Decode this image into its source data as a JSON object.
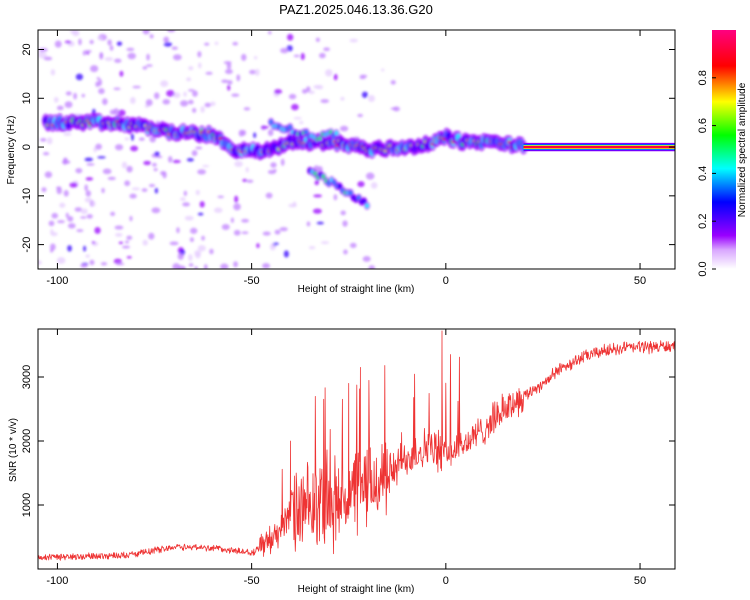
{
  "title": "PAZ1.2025.046.13.36.G20",
  "chart_data": [
    {
      "type": "heatmap",
      "xlabel": "Height of straight line (km)",
      "ylabel": "Frequency (Hz)",
      "xlim": [
        -105,
        59
      ],
      "ylim": [
        -25,
        24
      ],
      "x_ticks": [
        -100,
        -50,
        0,
        50
      ],
      "y_ticks": [
        -20,
        -10,
        0,
        10,
        20
      ],
      "colorbar": {
        "label": "Normalized spectral amplitude",
        "range": [
          0,
          1
        ],
        "ticks": [
          0.0,
          0.2,
          0.4,
          0.6,
          0.8
        ],
        "colors": [
          "#ffffff",
          "#9900ff",
          "#0000ff",
          "#00ffff",
          "#00ff00",
          "#ffff00",
          "#ff0000",
          "#ff0080"
        ]
      },
      "ridge_track": [
        {
          "x": -100,
          "y": 5
        },
        {
          "x": -90,
          "y": 5
        },
        {
          "x": -80,
          "y": 4.5
        },
        {
          "x": -70,
          "y": 3
        },
        {
          "x": -60,
          "y": 2.5
        },
        {
          "x": -55,
          "y": -0.5
        },
        {
          "x": -47,
          "y": -1
        },
        {
          "x": -40,
          "y": 1
        },
        {
          "x": -30,
          "y": 1
        },
        {
          "x": -25,
          "y": 0.5
        },
        {
          "x": -20,
          "y": -0.5
        },
        {
          "x": -10,
          "y": 0
        },
        {
          "x": -5,
          "y": 0.5
        },
        {
          "x": 0,
          "y": 2
        },
        {
          "x": 5,
          "y": 1
        },
        {
          "x": 12,
          "y": 1
        },
        {
          "x": 18,
          "y": 0.5
        },
        {
          "x": 20,
          "y": 0
        },
        {
          "x": 59,
          "y": 0
        }
      ],
      "secondary_tracks": [
        [
          {
            "x": -45,
            "y": 5
          },
          {
            "x": -38,
            "y": 3
          },
          {
            "x": -33,
            "y": 2
          },
          {
            "x": -28,
            "y": 3
          }
        ],
        [
          {
            "x": -35,
            "y": -5
          },
          {
            "x": -30,
            "y": -7
          },
          {
            "x": -26,
            "y": -9
          },
          {
            "x": -20,
            "y": -12
          }
        ]
      ]
    },
    {
      "type": "line",
      "xlabel": "Height of straight line (km)",
      "ylabel": "SNR (10 * v/v)",
      "xlim": [
        -105,
        59
      ],
      "ylim": [
        0,
        3750
      ],
      "x_ticks": [
        -100,
        -50,
        0,
        50
      ],
      "y_ticks": [
        1000,
        2000,
        3000
      ],
      "color": "#ee3333",
      "trend": [
        {
          "x": -105,
          "y": 180
        },
        {
          "x": -90,
          "y": 200
        },
        {
          "x": -80,
          "y": 230
        },
        {
          "x": -70,
          "y": 350
        },
        {
          "x": -60,
          "y": 330
        },
        {
          "x": -50,
          "y": 250
        },
        {
          "x": -45,
          "y": 450
        },
        {
          "x": -40,
          "y": 850
        },
        {
          "x": -35,
          "y": 900
        },
        {
          "x": -30,
          "y": 1000
        },
        {
          "x": -25,
          "y": 1150
        },
        {
          "x": -20,
          "y": 1300
        },
        {
          "x": -15,
          "y": 1450
        },
        {
          "x": -10,
          "y": 1750
        },
        {
          "x": -5,
          "y": 1900
        },
        {
          "x": 0,
          "y": 1800
        },
        {
          "x": 5,
          "y": 1950
        },
        {
          "x": 10,
          "y": 2200
        },
        {
          "x": 15,
          "y": 2500
        },
        {
          "x": 20,
          "y": 2700
        },
        {
          "x": 25,
          "y": 2900
        },
        {
          "x": 30,
          "y": 3150
        },
        {
          "x": 35,
          "y": 3300
        },
        {
          "x": 40,
          "y": 3400
        },
        {
          "x": 45,
          "y": 3450
        },
        {
          "x": 50,
          "y": 3470
        },
        {
          "x": 59,
          "y": 3480
        }
      ],
      "spikes": [
        {
          "x": -1,
          "y": 3720
        },
        {
          "x": -22,
          "y": 3150
        },
        {
          "x": -25,
          "y": 2900
        },
        {
          "x": -40,
          "y": 2000
        }
      ]
    }
  ]
}
